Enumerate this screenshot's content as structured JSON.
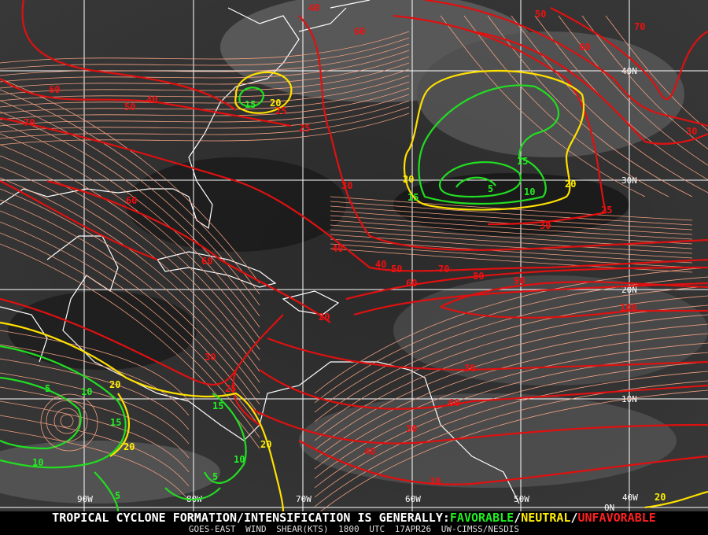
{
  "colors": {
    "favorable": "#22ee22",
    "neutral": "#ffee00",
    "unfavorable": "#ee1010",
    "streamline": "#f0a080",
    "grid": "#ffffff",
    "coast": "#ffffff"
  },
  "grid": {
    "lat_labels": [
      "40N",
      "30N",
      "20N",
      "10N",
      "0N"
    ],
    "lon_labels": [
      "90W",
      "80W",
      "70W",
      "60W",
      "50W",
      "40W"
    ]
  },
  "contour_labels": {
    "red": [
      "40",
      "50",
      "70",
      "60",
      "60",
      "60",
      "50",
      "40",
      "70",
      "25",
      "25",
      "30",
      "30",
      "25",
      "30",
      "60",
      "60",
      "40",
      "40",
      "50",
      "60",
      "70",
      "80",
      "90",
      "100",
      "20",
      "30",
      "25",
      "30",
      "60",
      "30",
      "40",
      "30"
    ],
    "yellow": [
      "20",
      "20",
      "20",
      "20",
      "20",
      "20",
      "20"
    ],
    "green": [
      "15",
      "15",
      "5",
      "10",
      "15",
      "5",
      "10",
      "15",
      "15",
      "10",
      "10",
      "5",
      "5"
    ]
  },
  "footer": {
    "headline": "TROPICAL CYCLONE FORMATION/INTENSIFICATION IS GENERALLY:",
    "favorable": "FAVORABLE",
    "sep1": "/",
    "neutral": "NEUTRAL",
    "sep2": "/",
    "unfavorable": "UNFAVORABLE",
    "product": "GOES-EAST WIND SHEAR(KTS)",
    "time": "1800 UTC",
    "date": "17APR26",
    "source": "UW-CIMSS/NESDIS"
  }
}
